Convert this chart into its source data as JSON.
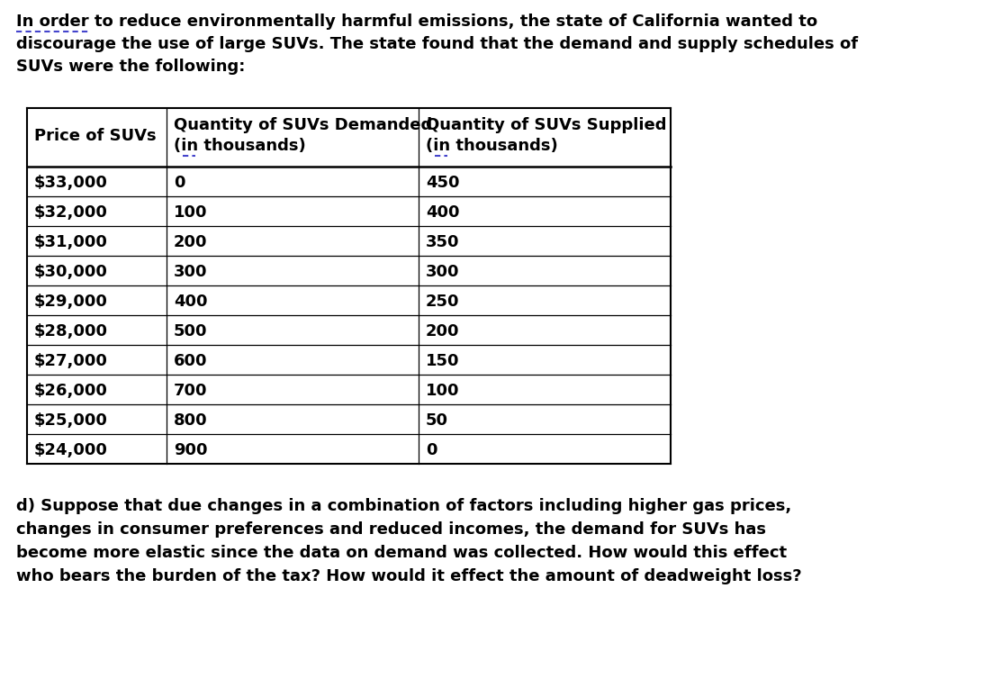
{
  "intro_text_line1": "In order to reduce environmentally harmful emissions, the state of California wanted to",
  "intro_text_line2": "discourage the use of large SUVs. The state found that the demand and supply schedules of",
  "intro_text_line3": "SUVs were the following:",
  "underline_text": "In order to",
  "col_headers_line1": [
    "Price of SUVs",
    "Quantity of SUVs Demanded",
    "Quantity of SUVs Supplied"
  ],
  "col_headers_line2": [
    "",
    "(in thousands)",
    "(in thousands)"
  ],
  "table_data": [
    [
      "$33,000",
      "0",
      "450"
    ],
    [
      "$32,000",
      "100",
      "400"
    ],
    [
      "$31,000",
      "200",
      "350"
    ],
    [
      "$30,000",
      "300",
      "300"
    ],
    [
      "$29,000",
      "400",
      "250"
    ],
    [
      "$28,000",
      "500",
      "200"
    ],
    [
      "$27,000",
      "600",
      "150"
    ],
    [
      "$26,000",
      "700",
      "100"
    ],
    [
      "$25,000",
      "800",
      "50"
    ],
    [
      "$24,000",
      "900",
      "0"
    ]
  ],
  "question_text_line1": "d) Suppose that due changes in a combination of factors including higher gas prices,",
  "question_text_line2": "changes in consumer preferences and reduced incomes, the demand for SUVs has",
  "question_text_line3": "become more elastic since the data on demand was collected. How would this effect",
  "question_text_line4": "who bears the burden of the tax? How would it effect the amount of deadweight loss?",
  "bg_color": "#ffffff",
  "text_color": "#000000",
  "underline_color": "#4444cc",
  "font_size": 13.0,
  "font_family": "DejaVu Sans",
  "font_weight": "bold"
}
